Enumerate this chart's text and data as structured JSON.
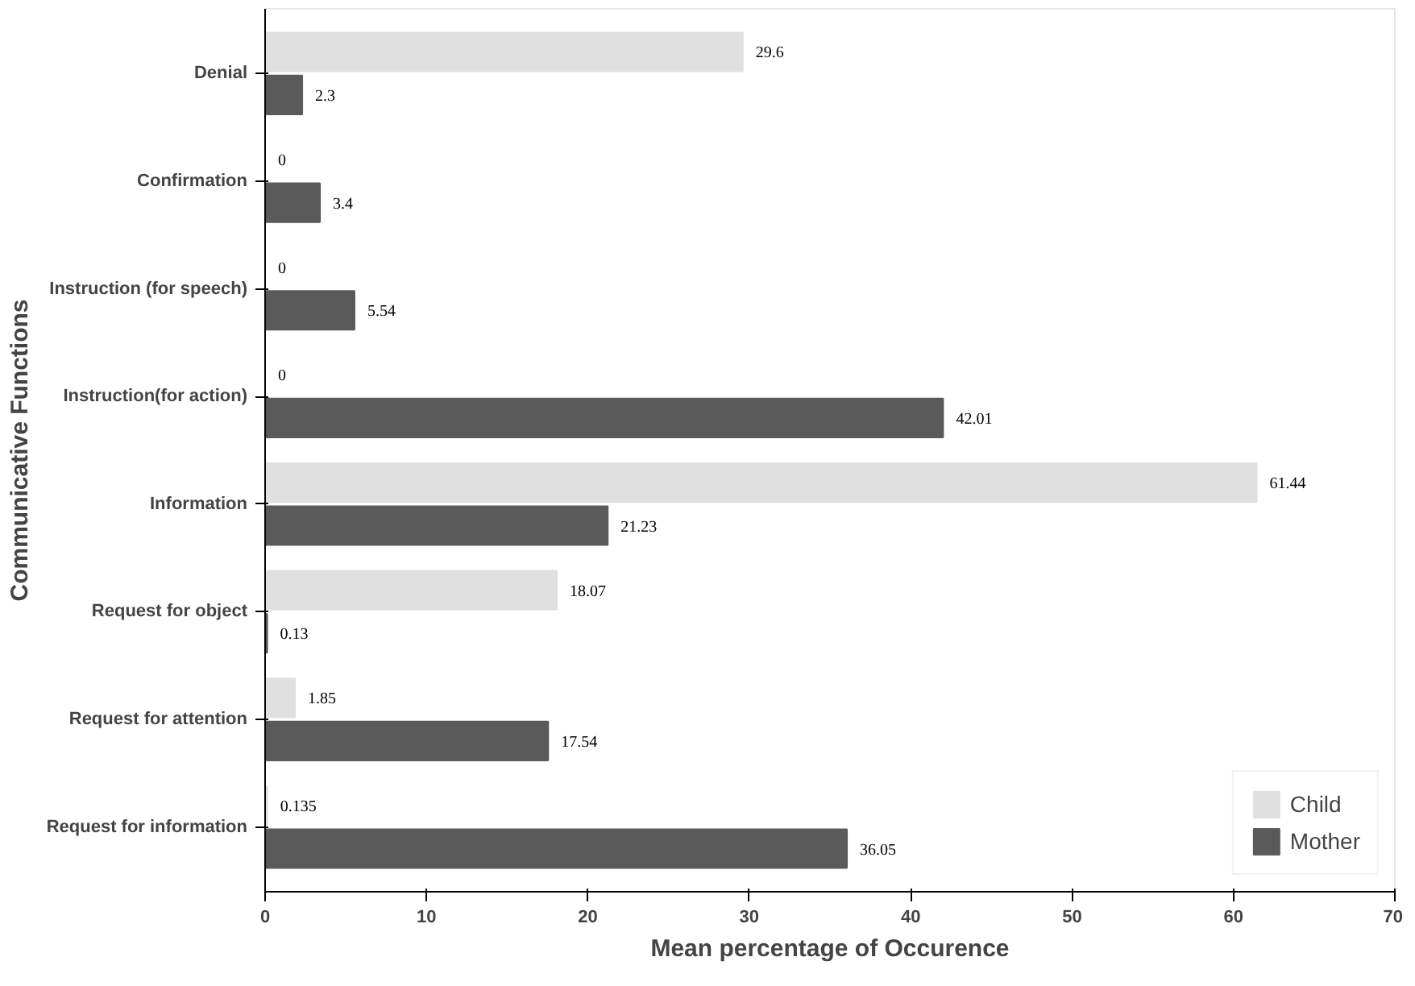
{
  "chart_data": {
    "type": "bar",
    "orientation": "horizontal",
    "xlabel": "Mean percentage of Occurence",
    "ylabel": "Communicative Functions",
    "categories": [
      "Denial",
      "Confirmation",
      "Instruction (for speech)",
      "Instruction(for action)",
      "Information",
      "Request for object",
      "Request for attention",
      "Request for information"
    ],
    "series": [
      {
        "name": "Child",
        "color": "#e0e0e0",
        "values": [
          29.6,
          0,
          0,
          0,
          61.44,
          18.07,
          1.85,
          0.135
        ]
      },
      {
        "name": "Mother",
        "color": "#5a5a5a",
        "values": [
          2.3,
          3.4,
          5.54,
          42.01,
          21.23,
          0.13,
          17.54,
          36.05
        ]
      }
    ],
    "xlim": [
      0,
      70
    ],
    "xticks": [
      0,
      10,
      20,
      30,
      40,
      50,
      60,
      70
    ],
    "data_labels": true,
    "legend": "bottom right",
    "grid": false
  }
}
